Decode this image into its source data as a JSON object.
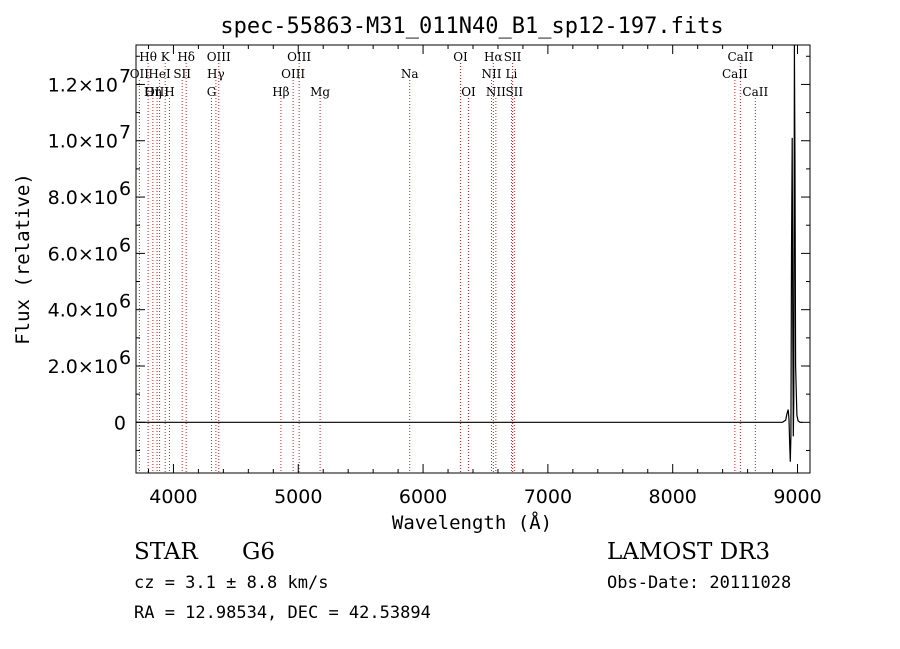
{
  "chart_data": {
    "type": "line",
    "title": "spec-55863-M31_011N40_B1_sp12-197.fits",
    "xlabel": "Wavelength (Å)",
    "ylabel": "Flux (relative)",
    "xlim": [
      3700,
      9100
    ],
    "ylim": [
      -1800000,
      13400000
    ],
    "x_ticks": [
      {
        "value": 4000,
        "label": "4000"
      },
      {
        "value": 5000,
        "label": "5000"
      },
      {
        "value": 6000,
        "label": "6000"
      },
      {
        "value": 7000,
        "label": "7000"
      },
      {
        "value": 8000,
        "label": "8000"
      },
      {
        "value": 9000,
        "label": "9000"
      }
    ],
    "y_ticks": [
      {
        "value": 0,
        "label": "0",
        "mant": "",
        "exp": ""
      },
      {
        "value": 2000000,
        "label": "2.0×10^6",
        "mant": "2.0×10",
        "exp": "6"
      },
      {
        "value": 4000000,
        "label": "4.0×10^6",
        "mant": "4.0×10",
        "exp": "6"
      },
      {
        "value": 6000000,
        "label": "6.0×10^6",
        "mant": "6.0×10",
        "exp": "6"
      },
      {
        "value": 8000000,
        "label": "8.0×10^6",
        "mant": "8.0×10",
        "exp": "6"
      },
      {
        "value": 10000000,
        "label": "1.0×10^7",
        "mant": "1.0×10",
        "exp": "7"
      },
      {
        "value": 12000000,
        "label": "1.2×10^7",
        "mant": "1.2×10",
        "exp": "7"
      }
    ],
    "series": [
      {
        "name": "flux",
        "x": [
          3700,
          4000,
          5000,
          6000,
          7000,
          8000,
          8880,
          8905,
          8915,
          8925,
          8932,
          8937,
          8942,
          8947,
          8952,
          8957,
          8962,
          8966,
          8970,
          8975,
          8980,
          8985,
          8995,
          9005,
          9020,
          9040
        ],
        "y": [
          0,
          0,
          0,
          0,
          0,
          0,
          0,
          80000,
          300000,
          450000,
          100000,
          -800000,
          -1400000,
          -500000,
          6000000,
          10100000,
          3000000,
          -500000,
          800000,
          13400000,
          9000000,
          2000000,
          250000,
          50000,
          0,
          0
        ]
      }
    ],
    "spectral_lines": [
      {
        "label": "Hθ",
        "wavelength": 3797,
        "row": 1
      },
      {
        "label": "OII",
        "wavelength": 3727,
        "row": 2
      },
      {
        "label": "OIII",
        "wavelength": 3869,
        "row": 3
      },
      {
        "label": "K",
        "wavelength": 3934,
        "row": 1
      },
      {
        "label": "HeI",
        "wavelength": 3889,
        "row": 2
      },
      {
        "label": "Hη",
        "wavelength": 3835,
        "row": 3
      },
      {
        "label": "H",
        "wavelength": 3968,
        "row": 3
      },
      {
        "label": "SII",
        "wavelength": 4070,
        "row": 2
      },
      {
        "label": "Hδ",
        "wavelength": 4102,
        "row": 1
      },
      {
        "label": "OIII",
        "wavelength": 4363,
        "row": 1
      },
      {
        "label": "Hγ",
        "wavelength": 4340,
        "row": 2
      },
      {
        "label": "G",
        "wavelength": 4305,
        "row": 3
      },
      {
        "label": "Hβ",
        "wavelength": 4861,
        "row": 3
      },
      {
        "label": "OIII",
        "wavelength": 5007,
        "row": 1
      },
      {
        "label": "OIII",
        "wavelength": 4959,
        "row": 2
      },
      {
        "label": "Mg",
        "wavelength": 5175,
        "row": 3
      },
      {
        "label": "Na",
        "wavelength": 5893,
        "row": 2
      },
      {
        "label": "OI",
        "wavelength": 6300,
        "row": 1
      },
      {
        "label": "OI",
        "wavelength": 6364,
        "row": 3
      },
      {
        "label": "Hα",
        "wavelength": 6563,
        "row": 1
      },
      {
        "label": "NII",
        "wavelength": 6548,
        "row": 2
      },
      {
        "label": "NII",
        "wavelength": 6583,
        "row": 3
      },
      {
        "label": "SII",
        "wavelength": 6717,
        "row": 1
      },
      {
        "label": "Li",
        "wavelength": 6708,
        "row": 2
      },
      {
        "label": "SII",
        "wavelength": 6731,
        "row": 3
      },
      {
        "label": "CaII",
        "wavelength": 8542,
        "row": 1
      },
      {
        "label": "CaII",
        "wavelength": 8498,
        "row": 2
      },
      {
        "label": "CaII",
        "wavelength": 8662,
        "row": 3
      }
    ]
  },
  "info": {
    "object_class": "STAR",
    "subclass": "G6",
    "redshift": "cz = 3.1 ± 8.8 km/s",
    "coords": "RA =  12.98534, DEC =  42.53894",
    "survey": "LAMOST DR3",
    "obs_date": "Obs-Date: 20111028"
  },
  "colors": {
    "line_marker": "#cc2222",
    "spectrum": "#000000",
    "axes": "#000000"
  }
}
